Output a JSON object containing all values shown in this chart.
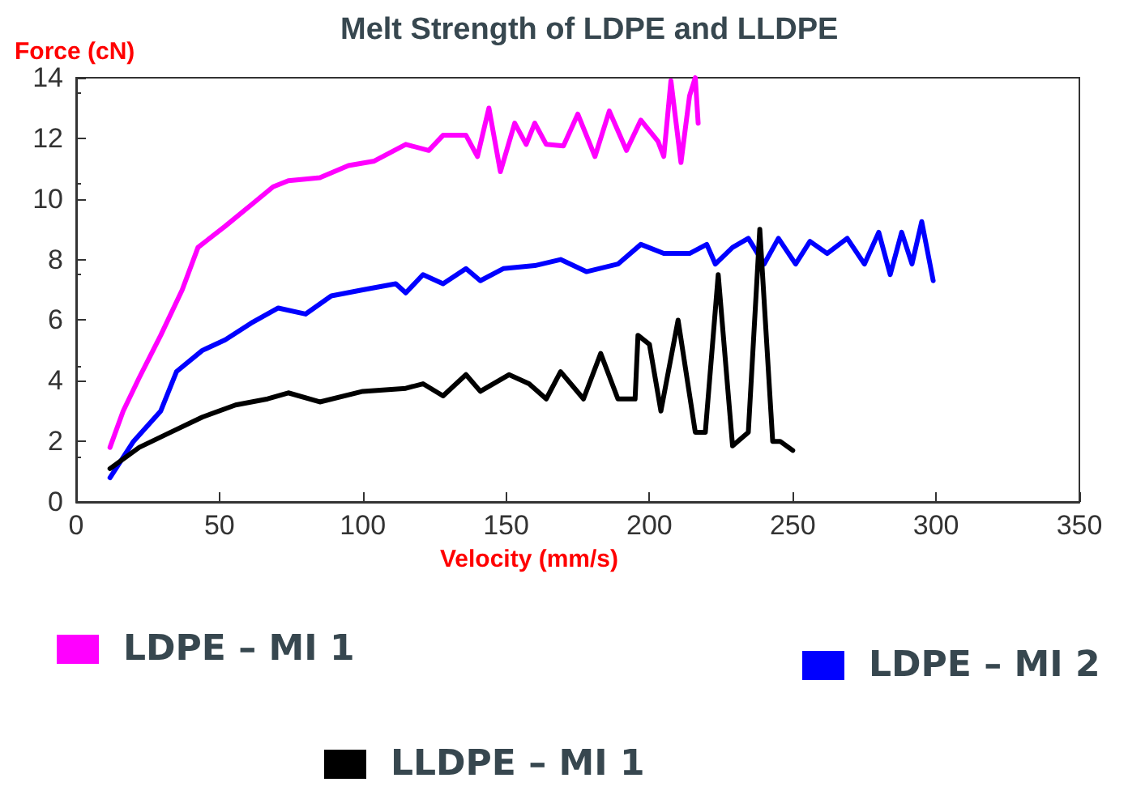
{
  "chart_data": {
    "type": "line",
    "title": "Melt Strength of LDPE and LLDPE",
    "xlabel": "Velocity (mm/s)",
    "ylabel": "Force (cN)",
    "xlim": [
      0,
      350
    ],
    "xticks": [
      0,
      50,
      100,
      150,
      200,
      250,
      300,
      350
    ],
    "ylim": [
      0,
      14
    ],
    "yticks": [
      0,
      2,
      4,
      6,
      8,
      10,
      12,
      14
    ],
    "grid": false,
    "legend": "bottom",
    "marker": "none",
    "line_style": "solid",
    "series": [
      {
        "name": "LDPE – MI 1",
        "color": "#ff00ff",
        "x": [
          11.8,
          16.4,
          22,
          29.5,
          37,
          42.5,
          52,
          61,
          68.7,
          74,
          85,
          95,
          104,
          115,
          123,
          128,
          136,
          140,
          144,
          148,
          153,
          157,
          160,
          164,
          170,
          175,
          181,
          186,
          192,
          197,
          203,
          205,
          207.5,
          211,
          214,
          216,
          217
        ],
        "values": [
          1.8,
          3.0,
          4.1,
          5.5,
          7.0,
          8.4,
          9.1,
          9.8,
          10.4,
          10.6,
          10.7,
          11.1,
          11.25,
          11.8,
          11.6,
          12.1,
          12.1,
          11.4,
          13.0,
          10.9,
          12.5,
          11.8,
          12.5,
          11.8,
          11.75,
          12.8,
          11.4,
          12.9,
          11.6,
          12.6,
          11.9,
          11.4,
          13.9,
          11.2,
          13.4,
          14.0,
          12.5
        ]
      },
      {
        "name": "LDPE – MI 2",
        "color": "#0000ff",
        "x": [
          11.8,
          20,
          29.5,
          35,
          44,
          52,
          61,
          70.5,
          80,
          89,
          100,
          111.5,
          115,
          121,
          128,
          136,
          141,
          149,
          160,
          169,
          178,
          189,
          197,
          205,
          214,
          220,
          223,
          229,
          234.5,
          240,
          245,
          251,
          256,
          262,
          269,
          275,
          280,
          284,
          288,
          291.6,
          295,
          299
        ],
        "values": [
          0.8,
          2.0,
          3.0,
          4.3,
          5.0,
          5.35,
          5.9,
          6.4,
          6.2,
          6.8,
          7.0,
          7.2,
          6.9,
          7.5,
          7.2,
          7.7,
          7.3,
          7.7,
          7.8,
          8.0,
          7.6,
          7.85,
          8.5,
          8.2,
          8.2,
          8.5,
          7.85,
          8.4,
          8.7,
          7.85,
          8.7,
          7.85,
          8.6,
          8.2,
          8.7,
          7.85,
          8.9,
          7.5,
          8.9,
          7.85,
          9.25,
          7.3
        ]
      },
      {
        "name": "LLDPE – MI 1",
        "color": "#000000",
        "x": [
          11.8,
          22,
          33,
          44,
          55.6,
          66.8,
          74,
          85,
          100,
          115,
          121,
          128,
          136,
          141,
          151,
          158,
          164,
          169,
          177,
          183,
          189,
          195,
          196,
          200,
          204,
          210,
          216,
          219.5,
          224,
          229,
          234.5,
          238.5,
          243,
          245.6,
          250
        ],
        "values": [
          1.1,
          1.8,
          2.3,
          2.8,
          3.2,
          3.4,
          3.6,
          3.3,
          3.65,
          3.75,
          3.9,
          3.5,
          4.2,
          3.65,
          4.2,
          3.9,
          3.4,
          4.3,
          3.4,
          4.9,
          3.4,
          3.4,
          5.5,
          5.2,
          3.0,
          6.0,
          2.3,
          2.3,
          7.5,
          1.85,
          2.3,
          9.0,
          2.0,
          2.0,
          1.7
        ]
      }
    ]
  }
}
